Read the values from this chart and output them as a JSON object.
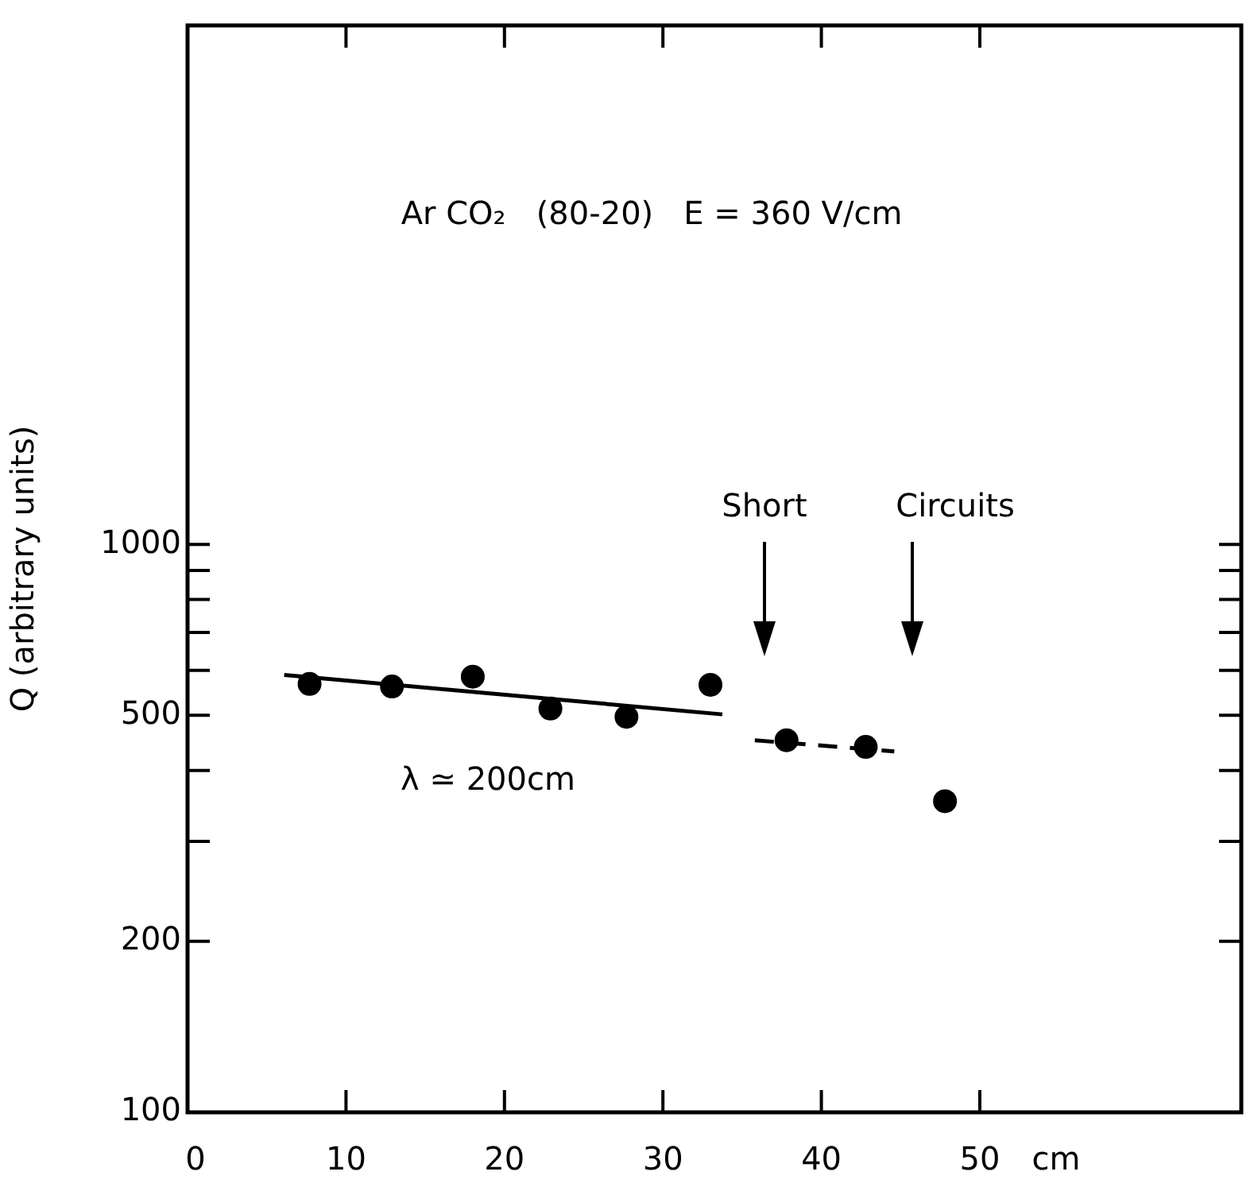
{
  "chart_data": {
    "type": "scatter",
    "ylabel": "Q (arbitrary units)",
    "xlabel": "cm",
    "log": "y",
    "xlim": [
      0,
      66.5
    ],
    "xticks": [
      0,
      10,
      20,
      30,
      40,
      50
    ],
    "ylim": [
      100,
      8200
    ],
    "yticks": [
      100,
      200,
      {
        "value": 300,
        "label": null
      },
      {
        "value": 400,
        "label": null
      },
      500,
      {
        "value": 600,
        "label": null
      },
      {
        "value": 700,
        "label": null
      },
      {
        "value": 800,
        "label": null
      },
      {
        "value": 900,
        "label": null
      },
      1000
    ],
    "series": [
      {
        "marker": "circle",
        "color": "#000000",
        "x": [
          7.7,
          12.9,
          18.0,
          22.9,
          27.7,
          33.0,
          37.8,
          42.8,
          47.8
        ],
        "values": [
          568,
          562,
          585,
          514,
          497,
          566,
          452,
          440,
          353
        ]
      },
      {
        "type": "line",
        "marker": "none",
        "line_style": "solid",
        "color": "#000000",
        "x": [
          6.1,
          33.75
        ],
        "values": [
          589,
          502
        ]
      },
      {
        "type": "line",
        "marker": "none",
        "line_style": "dashed",
        "color": "#000000",
        "x": [
          35.8,
          44.6
        ],
        "values": [
          452,
          432
        ]
      }
    ],
    "annotations": [
      "Ar CO₂   (80-20)   E = 360 V/cm",
      "Short",
      "Circuits",
      "λ ≃ 200cm"
    ]
  }
}
